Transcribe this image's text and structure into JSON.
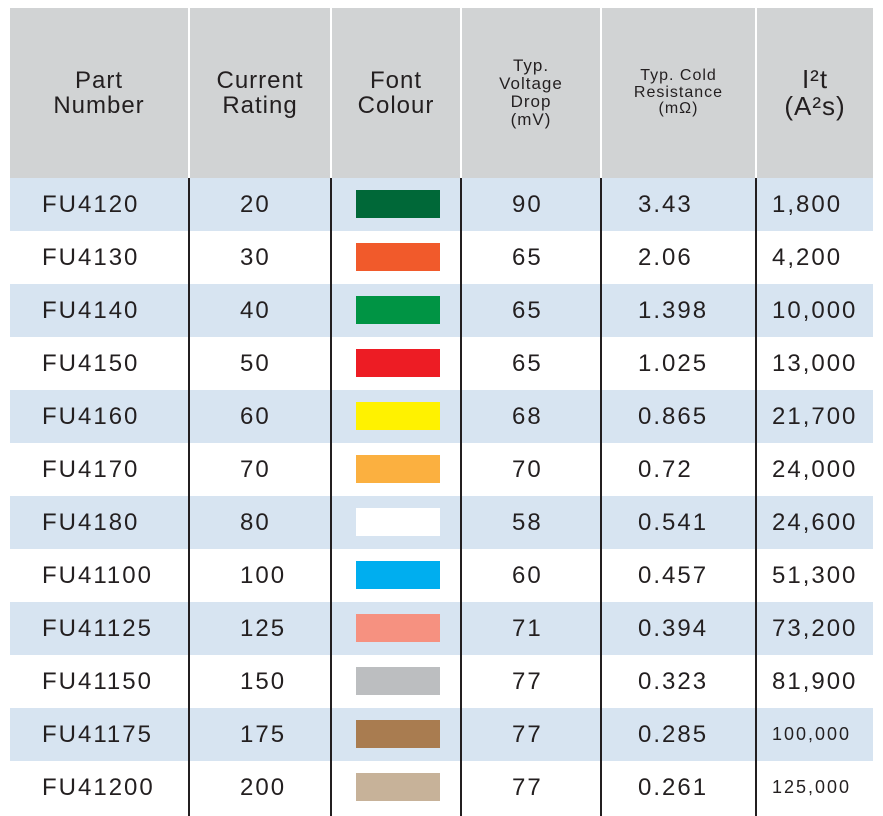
{
  "table": {
    "header": [
      [
        "Part",
        "Number"
      ],
      [
        "Current",
        "Rating"
      ],
      [
        "Font",
        "Colour"
      ],
      [
        "Typ.",
        "Voltage",
        "Drop",
        "(mV)"
      ],
      [
        "Typ. Cold",
        "Resistance",
        "(mΩ)"
      ],
      [
        "I²t",
        "(A²s)"
      ]
    ],
    "rows": [
      [
        "FU4120",
        "20",
        {
          "colour": "#006838"
        },
        "90",
        "3.43",
        "1,800"
      ],
      [
        "FU4130",
        "30",
        {
          "colour": "#f15a2b"
        },
        "65",
        "2.06",
        "4,200"
      ],
      [
        "FU4140",
        "40",
        {
          "colour": "#009444"
        },
        "65",
        "1.398",
        "10,000"
      ],
      [
        "FU4150",
        "50",
        {
          "colour": "#ed1c24"
        },
        "65",
        "1.025",
        "13,000"
      ],
      [
        "FU4160",
        "60",
        {
          "colour": "#fff200"
        },
        "68",
        "0.865",
        "21,700"
      ],
      [
        "FU4170",
        "70",
        {
          "colour": "#fbb040"
        },
        "70",
        "0.72",
        "24,000"
      ],
      [
        "FU4180",
        "80",
        {
          "colour": "#ffffff"
        },
        "58",
        "0.541",
        "24,600"
      ],
      [
        "FU41100",
        "100",
        {
          "colour": "#00aeef"
        },
        "60",
        "0.457",
        "51,300"
      ],
      [
        "FU41125",
        "125",
        {
          "colour": "#f69180"
        },
        "71",
        "0.394",
        "73,200"
      ],
      [
        "FU41150",
        "150",
        {
          "colour": "#bcbec0"
        },
        "77",
        "0.323",
        "81,900"
      ],
      [
        "FU41175",
        "175",
        {
          "colour": "#a97c50"
        },
        "77",
        "0.285",
        "100,000"
      ],
      [
        "FU41200",
        "200",
        {
          "colour": "#c7b299"
        },
        "77",
        "0.261",
        "125,000"
      ]
    ]
  }
}
